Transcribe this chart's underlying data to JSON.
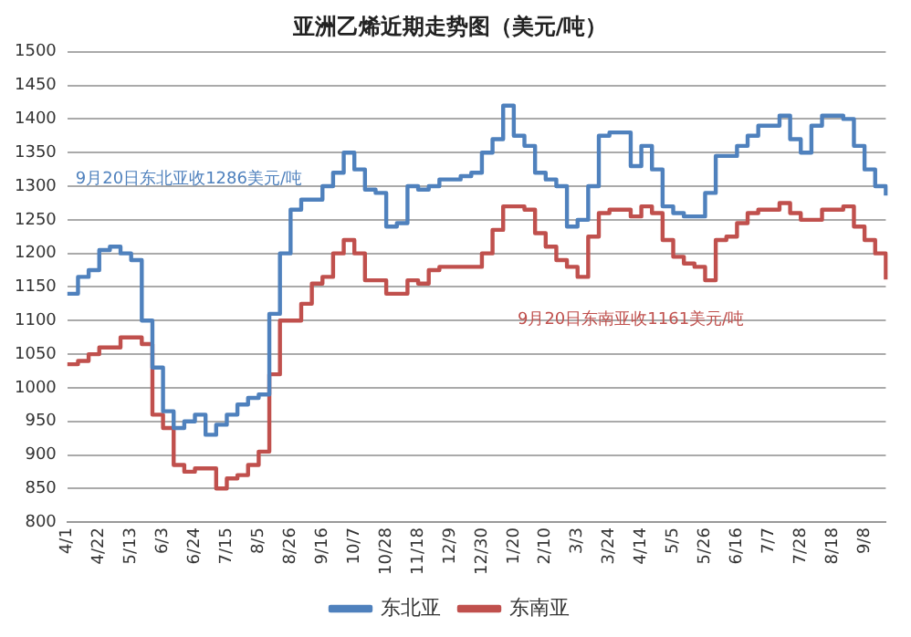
{
  "chart_data": {
    "type": "step",
    "title": "亚洲乙烯近期走势图（美元/吨）",
    "categories": [
      "4/1",
      null,
      null,
      "4/22",
      null,
      null,
      "5/13",
      null,
      null,
      "6/3",
      null,
      null,
      "6/24",
      null,
      null,
      "7/15",
      null,
      null,
      "8/5",
      null,
      null,
      "8/26",
      null,
      null,
      "9/16",
      null,
      null,
      "10/7",
      null,
      null,
      "10/28",
      null,
      null,
      "11/18",
      null,
      null,
      "12/9",
      null,
      null,
      "12/30",
      null,
      null,
      "1/20",
      null,
      null,
      "2/10",
      null,
      null,
      "3/3",
      null,
      null,
      "3/24",
      null,
      null,
      "4/14",
      null,
      null,
      "5/5",
      null,
      null,
      "5/26",
      null,
      null,
      "6/16",
      null,
      null,
      "7/7",
      null,
      null,
      "7/28",
      null,
      null,
      "8/18",
      null,
      null,
      "9/8",
      null,
      null
    ],
    "series": [
      {
        "name": "东北亚",
        "color": "#4f81bd",
        "values": [
          1140,
          1165,
          1175,
          1205,
          1210,
          1200,
          1190,
          1100,
          1030,
          965,
          940,
          950,
          960,
          930,
          945,
          960,
          975,
          985,
          990,
          1110,
          1200,
          1265,
          1280,
          1280,
          1300,
          1320,
          1350,
          1325,
          1295,
          1290,
          1240,
          1245,
          1300,
          1295,
          1300,
          1310,
          1310,
          1315,
          1320,
          1350,
          1370,
          1420,
          1375,
          1360,
          1320,
          1310,
          1300,
          1240,
          1250,
          1300,
          1375,
          1380,
          1380,
          1330,
          1360,
          1325,
          1270,
          1260,
          1255,
          1255,
          1290,
          1345,
          1345,
          1360,
          1375,
          1390,
          1390,
          1405,
          1370,
          1350,
          1390,
          1405,
          1405,
          1400,
          1360,
          1325,
          1300,
          1286
        ]
      },
      {
        "name": "东南亚",
        "color": "#c0504d",
        "values": [
          1035,
          1040,
          1050,
          1060,
          1060,
          1075,
          1075,
          1065,
          960,
          940,
          885,
          875,
          880,
          880,
          850,
          865,
          870,
          885,
          905,
          1020,
          1100,
          1100,
          1125,
          1155,
          1165,
          1200,
          1220,
          1200,
          1160,
          1160,
          1140,
          1140,
          1160,
          1155,
          1175,
          1180,
          1180,
          1180,
          1180,
          1200,
          1235,
          1270,
          1270,
          1265,
          1230,
          1210,
          1190,
          1180,
          1165,
          1225,
          1260,
          1265,
          1265,
          1255,
          1270,
          1260,
          1220,
          1195,
          1185,
          1180,
          1160,
          1220,
          1225,
          1245,
          1260,
          1265,
          1265,
          1275,
          1260,
          1250,
          1250,
          1265,
          1265,
          1270,
          1240,
          1220,
          1200,
          1161
        ]
      }
    ],
    "ylim": [
      800,
      1500
    ],
    "yticks": [
      800,
      850,
      900,
      950,
      1000,
      1050,
      1100,
      1150,
      1200,
      1250,
      1300,
      1350,
      1400,
      1450,
      1500
    ],
    "annotations": [
      "9月20日东北亚收1286美元/吨",
      "9月20日东南亚收1161美元/吨"
    ],
    "grid": "y",
    "legend": "bottom",
    "marker": "none",
    "line_style": "solid"
  }
}
